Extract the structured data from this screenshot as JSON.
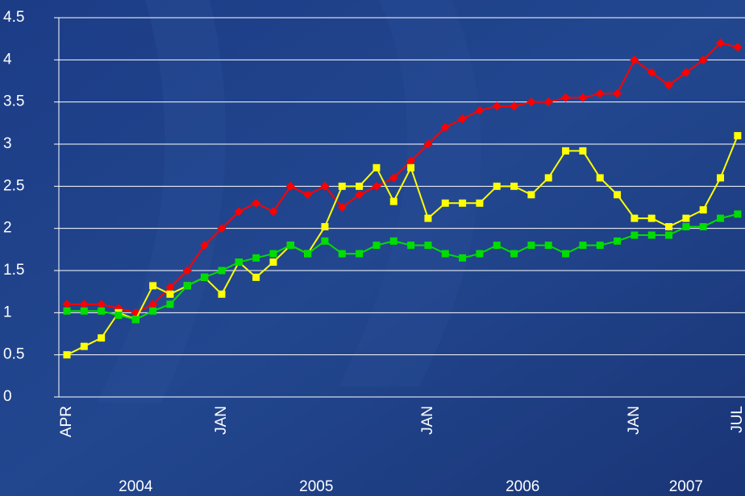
{
  "chart_data": {
    "type": "line",
    "categories": [
      "APR",
      null,
      null,
      null,
      null,
      null,
      null,
      null,
      null,
      "JAN",
      null,
      null,
      null,
      null,
      null,
      null,
      null,
      null,
      null,
      null,
      null,
      "JAN",
      null,
      null,
      null,
      null,
      null,
      null,
      null,
      null,
      null,
      null,
      null,
      "JAN",
      null,
      null,
      null,
      null,
      null,
      "JUL"
    ],
    "year_groups": [
      {
        "label": "2004",
        "months": 9
      },
      {
        "label": "2005",
        "months": 12
      },
      {
        "label": "2006",
        "months": 12
      },
      {
        "label": "2007",
        "months": 7
      }
    ],
    "series": [
      {
        "color": "#ff0000",
        "marker": "diamond",
        "values": [
          1.1,
          1.1,
          1.1,
          1.05,
          1.0,
          1.1,
          1.3,
          1.5,
          1.8,
          2.0,
          2.2,
          2.3,
          2.2,
          2.5,
          2.4,
          2.5,
          2.25,
          2.4,
          2.5,
          2.6,
          2.8,
          3.0,
          3.2,
          3.3,
          3.4,
          3.45,
          3.45,
          3.5,
          3.5,
          3.55,
          3.55,
          3.6,
          3.6,
          4.0,
          3.85,
          3.7,
          3.85,
          4.0,
          4.2,
          4.15
        ]
      },
      {
        "color": "#ffff00",
        "marker": "square",
        "values": [
          0.5,
          0.6,
          0.7,
          1.0,
          0.92,
          1.32,
          1.22,
          1.32,
          1.42,
          1.22,
          1.6,
          1.42,
          1.6,
          1.8,
          1.7,
          2.02,
          2.5,
          2.5,
          2.72,
          2.32,
          2.72,
          2.12,
          2.3,
          2.3,
          2.3,
          2.5,
          2.5,
          2.4,
          2.6,
          2.92,
          2.92,
          2.6,
          2.4,
          2.12,
          2.12,
          2.02,
          2.12,
          2.22,
          2.6,
          3.1
        ]
      },
      {
        "color": "#00dd00",
        "marker": "square",
        "values": [
          1.02,
          1.02,
          1.02,
          0.97,
          0.92,
          1.02,
          1.1,
          1.32,
          1.42,
          1.5,
          1.6,
          1.65,
          1.7,
          1.8,
          1.7,
          1.85,
          1.7,
          1.7,
          1.8,
          1.85,
          1.8,
          1.8,
          1.7,
          1.65,
          1.7,
          1.8,
          1.7,
          1.8,
          1.8,
          1.7,
          1.8,
          1.8,
          1.85,
          1.92,
          1.92,
          1.92,
          2.02,
          2.02,
          2.12,
          2.17
        ]
      }
    ],
    "ylim": [
      0,
      4.5
    ],
    "yticks": [
      0,
      0.5,
      1,
      1.5,
      2,
      2.5,
      3,
      3.5,
      4,
      4.5
    ],
    "grid": true
  }
}
